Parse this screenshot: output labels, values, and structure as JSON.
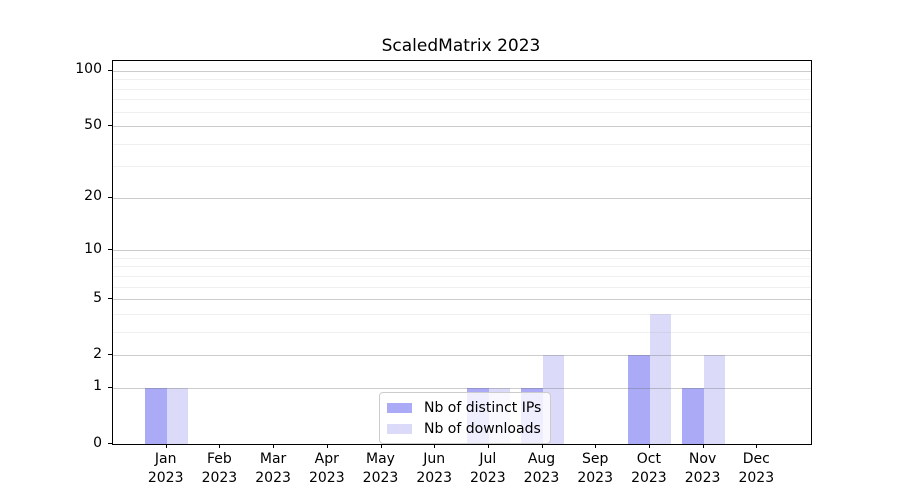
{
  "figure": {
    "background": "#ffffff",
    "axis_color": "#000000"
  },
  "chart_data": {
    "type": "bar",
    "title": "ScaledMatrix 2023",
    "categories": [
      "Jan 2023",
      "Feb 2023",
      "Mar 2023",
      "Apr 2023",
      "May 2023",
      "Jun 2023",
      "Jul 2023",
      "Aug 2023",
      "Sep 2023",
      "Oct 2023",
      "Nov 2023",
      "Dec 2023"
    ],
    "series": [
      {
        "name": "Nb of distinct IPs",
        "color": "#aaaaf7",
        "values": [
          1,
          0,
          0,
          0,
          0,
          0,
          1,
          1,
          0,
          2,
          1,
          0
        ]
      },
      {
        "name": "Nb of downloads",
        "color": "#dbdbf9",
        "values": [
          1,
          0,
          0,
          0,
          0,
          0,
          1,
          2,
          0,
          4,
          2,
          0
        ]
      }
    ],
    "yscale": "log1p",
    "ylim": [
      0,
      113
    ],
    "y_major_ticks": [
      0,
      1,
      2,
      5,
      10,
      20,
      50,
      100
    ],
    "y_minor_gridlines": [
      3,
      4,
      6,
      7,
      8,
      9,
      30,
      40,
      60,
      70,
      80,
      90
    ],
    "grid": true,
    "legend_position": "lower center"
  }
}
